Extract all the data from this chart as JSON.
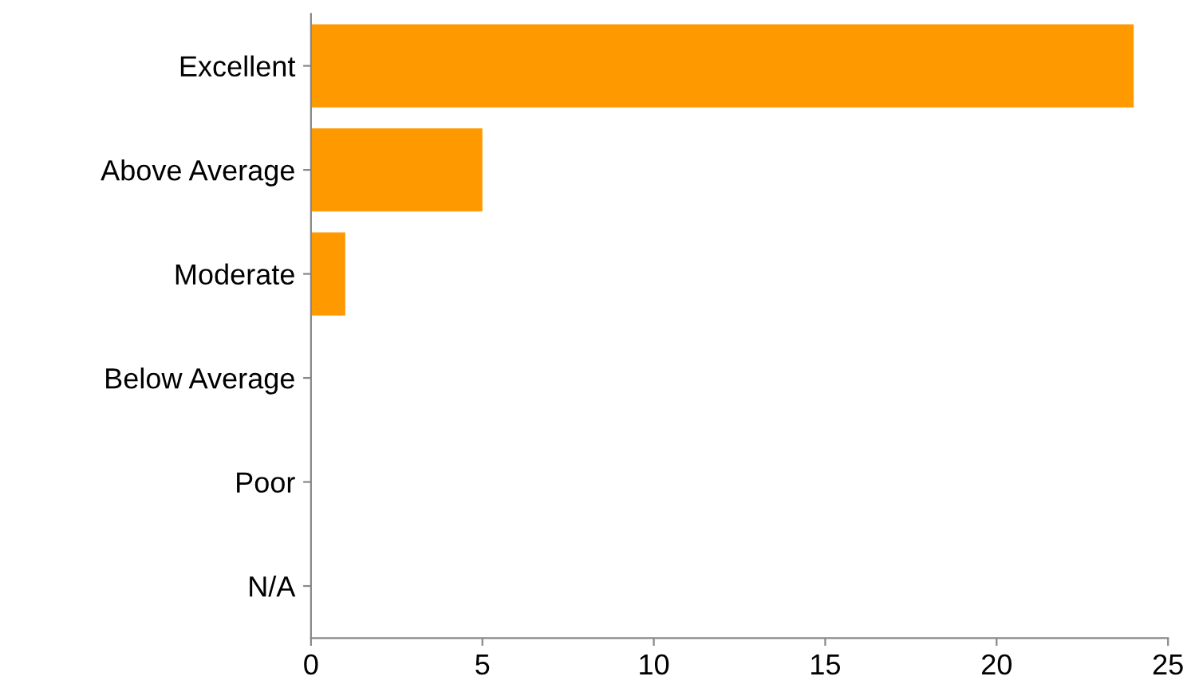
{
  "chart_data": {
    "type": "bar",
    "orientation": "horizontal",
    "categories": [
      "Excellent",
      "Above Average",
      "Moderate",
      "Below Average",
      "Poor",
      "N/A"
    ],
    "values": [
      24,
      5,
      1,
      0,
      0,
      0
    ],
    "color": "#ff9900",
    "xlim": [
      0,
      25
    ],
    "xticks": [
      0,
      5,
      10,
      15,
      20,
      25
    ],
    "grid": false,
    "legend": false
  }
}
